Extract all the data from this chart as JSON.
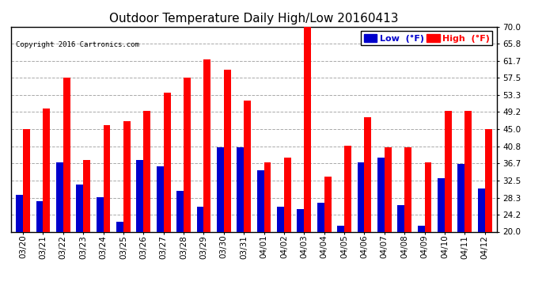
{
  "title": "Outdoor Temperature Daily High/Low 20160413",
  "copyright": "Copyright 2016 Cartronics.com",
  "categories": [
    "03/20",
    "03/21",
    "03/22",
    "03/23",
    "03/24",
    "03/25",
    "03/26",
    "03/27",
    "03/28",
    "03/29",
    "03/30",
    "03/31",
    "04/01",
    "04/02",
    "04/03",
    "04/04",
    "04/05",
    "04/06",
    "04/07",
    "04/08",
    "04/09",
    "04/10",
    "04/11",
    "04/12"
  ],
  "high_values": [
    45.0,
    50.0,
    57.5,
    37.5,
    46.0,
    47.0,
    49.5,
    54.0,
    57.5,
    62.0,
    59.5,
    52.0,
    37.0,
    38.0,
    70.5,
    33.5,
    41.0,
    48.0,
    40.5,
    40.5,
    37.0,
    49.5,
    49.5,
    45.0
  ],
  "low_values": [
    29.0,
    27.5,
    37.0,
    31.5,
    28.5,
    22.5,
    37.5,
    36.0,
    30.0,
    26.0,
    40.5,
    40.5,
    35.0,
    26.0,
    25.5,
    27.0,
    21.5,
    37.0,
    38.0,
    26.5,
    21.5,
    33.0,
    36.5,
    30.5
  ],
  "high_color": "#ff0000",
  "low_color": "#0000cc",
  "bg_color": "#ffffff",
  "plot_bg_color": "#ffffff",
  "grid_color": "#aaaaaa",
  "ylim_min": 20.0,
  "ylim_max": 70.0,
  "yticks": [
    20.0,
    24.2,
    28.3,
    32.5,
    36.7,
    40.8,
    45.0,
    49.2,
    53.3,
    57.5,
    61.7,
    65.8,
    70.0
  ],
  "bar_width": 0.35,
  "title_fontsize": 11,
  "tick_fontsize": 7.5,
  "legend_low_label": "Low  (°F)",
  "legend_high_label": "High  (°F)"
}
